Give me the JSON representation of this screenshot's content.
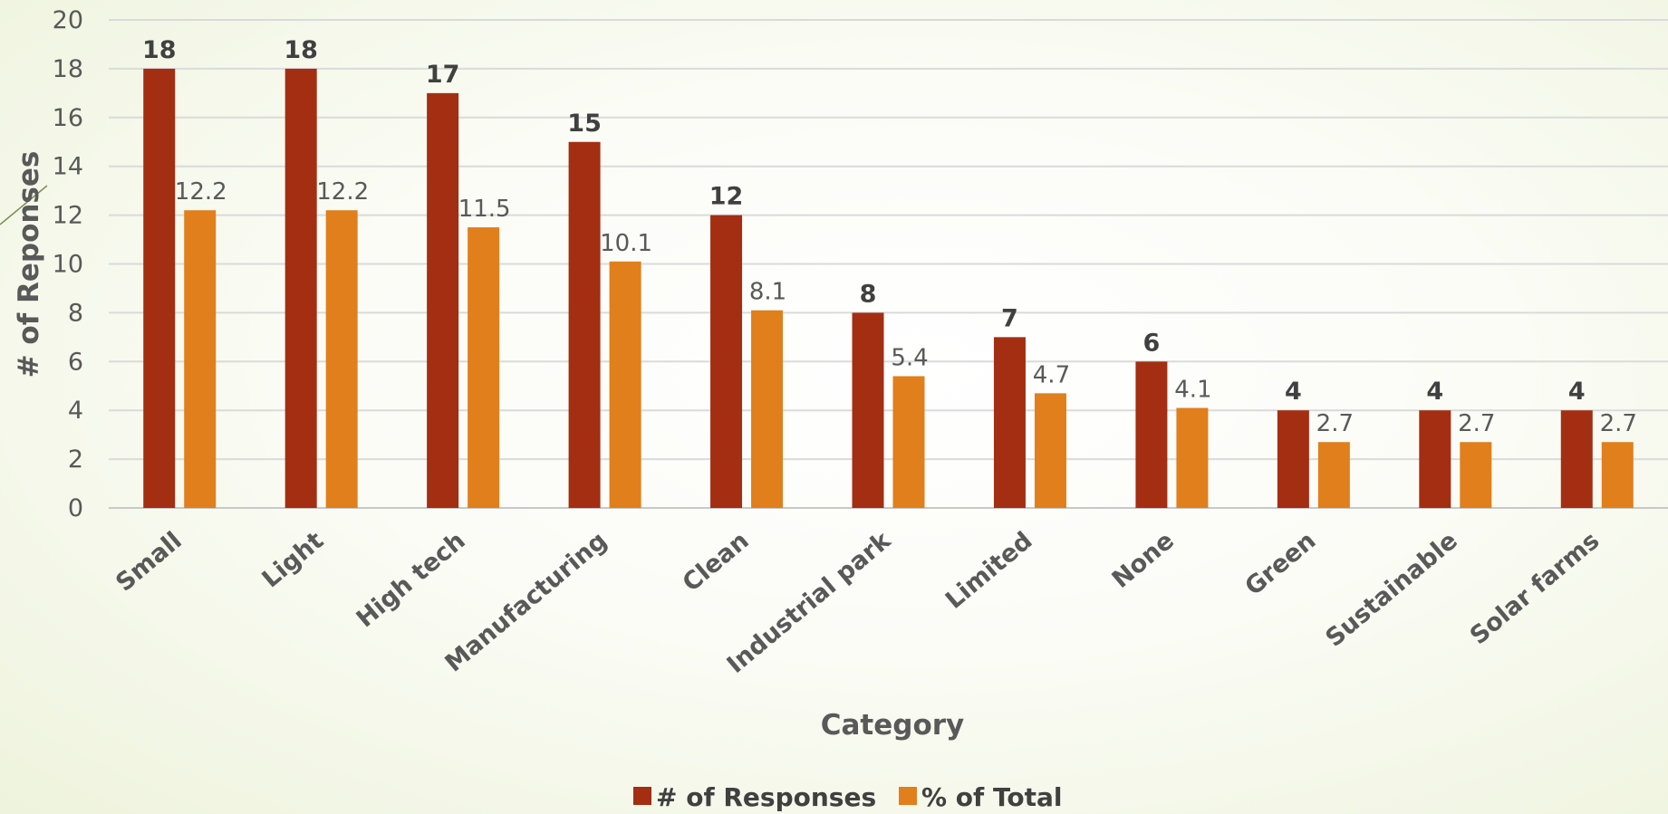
{
  "chart_data": {
    "type": "bar",
    "categories": [
      "Small",
      "Light",
      "High tech",
      "Manufacturing",
      "Clean",
      "Industrial park",
      "Limited",
      "None",
      "Green",
      "Sustainable",
      "Solar farms"
    ],
    "series": [
      {
        "name": "# of Responses",
        "values": [
          18,
          18,
          17,
          15,
          12,
          8,
          7,
          6,
          4,
          4,
          4
        ],
        "color": "#a32e12"
      },
      {
        "name": "% of Total",
        "values": [
          12.2,
          12.2,
          11.5,
          10.1,
          8.1,
          5.4,
          4.7,
          4.1,
          2.7,
          2.7,
          2.7
        ],
        "color": "#e07f1b"
      }
    ],
    "xlabel": "Category",
    "ylabel": "# of Reponses",
    "ylim": [
      0,
      20
    ],
    "yticks": [
      0,
      2,
      4,
      6,
      8,
      10,
      12,
      14,
      16,
      18,
      20
    ],
    "grid": true,
    "legend": "bottom"
  }
}
